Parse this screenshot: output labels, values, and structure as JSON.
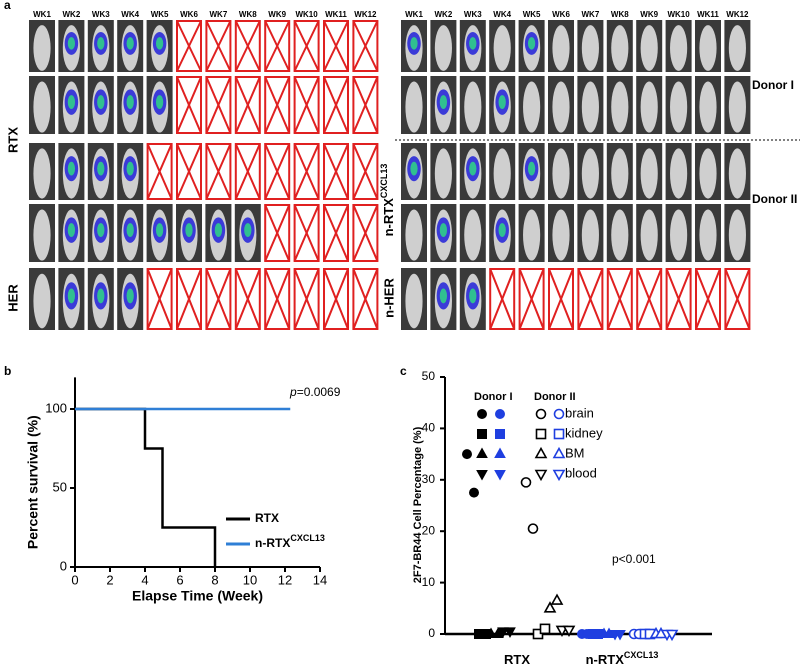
{
  "figure_a": {
    "panel_label": "a",
    "weeks_left": [
      "WK1",
      "WK2",
      "WK3",
      "WK4",
      "WK5",
      "WK6",
      "WK7",
      "WK8",
      "WK9",
      "WK10",
      "WK11",
      "WK12"
    ],
    "weeks_right": [
      "WK1",
      "WK2",
      "WK3",
      "WK4",
      "WK5",
      "WK6",
      "WK7",
      "WK8",
      "WK9",
      "WK10",
      "WK11",
      "WK12"
    ],
    "left_rows": {
      "treatment": "RTX",
      "control": "HER"
    },
    "right_rows": {
      "treatment": "n-RTX",
      "treatment_superscript": "CXCL13",
      "control": "n-HER"
    },
    "donors": [
      "Donor I",
      "Donor II"
    ]
  },
  "chart_data": [
    {
      "type": "line",
      "panel_label": "b",
      "x_label": "Elapse Time (Week)",
      "y_label": "Percent survival (%)",
      "xlim": [
        0,
        14
      ],
      "xticks": [
        0,
        2,
        4,
        6,
        8,
        10,
        12,
        14
      ],
      "ylim": [
        0,
        120
      ],
      "yticks": [
        0,
        50,
        100
      ],
      "annotation": {
        "italic": "p",
        "text": "=0.0069"
      },
      "series": [
        {
          "name": "RTX",
          "color": "#000000",
          "x": [
            0,
            4,
            4,
            5,
            5,
            8,
            8
          ],
          "values": [
            100,
            100,
            75,
            75,
            25,
            25,
            0
          ]
        },
        {
          "name": "n-RTX",
          "name_superscript": "CXCL13",
          "color": "#2f7fd6",
          "x": [
            0,
            12.3
          ],
          "values": [
            100,
            100
          ]
        }
      ]
    },
    {
      "type": "scatter",
      "panel_label": "c",
      "y_label": "2F7-BR44 Cell Percentage (%)",
      "ylim": [
        0,
        50
      ],
      "yticks": [
        0,
        10,
        20,
        30,
        40,
        50
      ],
      "categories": [
        "RTX",
        "n-RTX"
      ],
      "category_superscripts": [
        null,
        "CXCL13"
      ],
      "annotation": "p<0.001",
      "legend": {
        "donors": [
          "Donor I",
          "Donor II"
        ],
        "tissues": [
          "brain",
          "kidney",
          "BM",
          "blood"
        ]
      },
      "series": [
        {
          "category": 0,
          "donor": 0,
          "tissue": 0,
          "color": "#000000",
          "values": [
            35,
            27.5
          ]
        },
        {
          "category": 0,
          "donor": 0,
          "tissue": 1,
          "color": "#000000",
          "values": [
            0,
            0
          ]
        },
        {
          "category": 0,
          "donor": 0,
          "tissue": 2,
          "color": "#000000",
          "values": [
            0,
            0
          ]
        },
        {
          "category": 0,
          "donor": 0,
          "tissue": 3,
          "color": "#000000",
          "values": [
            0.5,
            0.5
          ]
        },
        {
          "category": 0,
          "donor": 1,
          "tissue": 0,
          "color": "#000000",
          "values": [
            29.5,
            20.5
          ]
        },
        {
          "category": 0,
          "donor": 1,
          "tissue": 1,
          "color": "#000000",
          "values": [
            0,
            1
          ]
        },
        {
          "category": 0,
          "donor": 1,
          "tissue": 2,
          "color": "#000000",
          "values": [
            5,
            6.5
          ]
        },
        {
          "category": 0,
          "donor": 1,
          "tissue": 3,
          "color": "#000000",
          "values": [
            0.8,
            0.8
          ]
        },
        {
          "category": 1,
          "donor": 0,
          "tissue": 0,
          "color": "#1f3fe0",
          "values": [
            0,
            0
          ]
        },
        {
          "category": 1,
          "donor": 0,
          "tissue": 1,
          "color": "#1f3fe0",
          "values": [
            0,
            0
          ]
        },
        {
          "category": 1,
          "donor": 0,
          "tissue": 2,
          "color": "#1f3fe0",
          "values": [
            0,
            0
          ]
        },
        {
          "category": 1,
          "donor": 0,
          "tissue": 3,
          "color": "#1f3fe0",
          "values": [
            0,
            0
          ]
        },
        {
          "category": 1,
          "donor": 1,
          "tissue": 0,
          "color": "#1f3fe0",
          "values": [
            0,
            0
          ]
        },
        {
          "category": 1,
          "donor": 1,
          "tissue": 1,
          "color": "#1f3fe0",
          "values": [
            0,
            0
          ]
        },
        {
          "category": 1,
          "donor": 1,
          "tissue": 2,
          "color": "#1f3fe0",
          "values": [
            0,
            0
          ]
        },
        {
          "category": 1,
          "donor": 1,
          "tissue": 3,
          "color": "#1f3fe0",
          "values": [
            0,
            0
          ]
        }
      ]
    }
  ]
}
